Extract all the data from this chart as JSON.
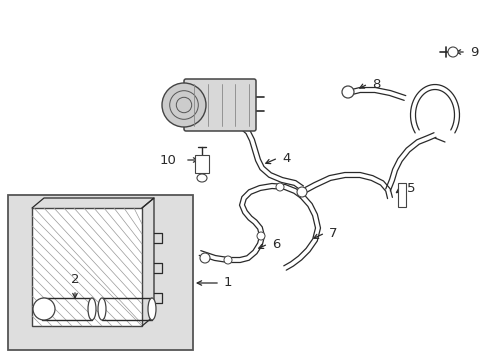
{
  "bg_color": "#ffffff",
  "line_color": "#2a2a2a",
  "label_color": "#000000",
  "box_bg": "#e0e0e0",
  "lw": 1.1,
  "fontsize": 9.5
}
